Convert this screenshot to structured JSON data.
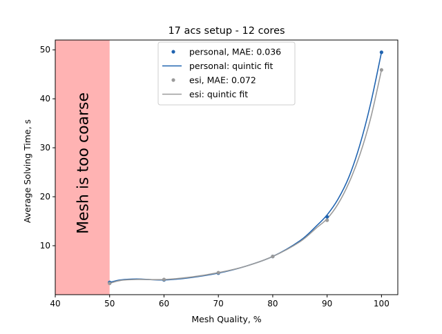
{
  "chart_data": {
    "type": "line",
    "title": "17 acs setup - 12 cores",
    "xlabel": "Mesh Quality, %",
    "ylabel": "Average Solving Time, s",
    "xlim": [
      40,
      103
    ],
    "ylim": [
      0,
      52
    ],
    "x_ticks": [
      40,
      50,
      60,
      70,
      80,
      90,
      100
    ],
    "y_ticks": [
      10,
      20,
      30,
      40,
      50
    ],
    "grid": false,
    "legend_position": "upper center",
    "colors": {
      "personal": "#1f63b0",
      "esi": "#9a9a9a",
      "shade": "#ffb3b3",
      "axis": "#000000"
    },
    "shaded_region": {
      "x": [
        40,
        50
      ],
      "label": "Mesh is too coarse",
      "color": "#ffb3b3"
    },
    "series": [
      {
        "name": "personal, MAE: 0.036",
        "kind": "points",
        "color": "#1f63b0",
        "x": [
          50,
          60,
          70,
          80,
          90,
          100
        ],
        "y": [
          2.5,
          3.0,
          4.4,
          7.8,
          15.9,
          49.5
        ]
      },
      {
        "name": "personal: quintic fit",
        "kind": "curve",
        "color": "#1f63b0",
        "x": [
          50,
          52,
          55,
          60,
          65,
          70,
          75,
          80,
          85,
          88,
          90,
          92,
          94,
          96,
          98,
          100
        ],
        "y": [
          2.5,
          3.0,
          3.2,
          3.0,
          3.5,
          4.4,
          5.8,
          7.8,
          11.0,
          14.0,
          16.3,
          19.5,
          24.0,
          30.5,
          39.0,
          49.5
        ]
      },
      {
        "name": "esi, MAE: 0.072",
        "kind": "points",
        "color": "#9a9a9a",
        "x": [
          50,
          60,
          70,
          80,
          90,
          100
        ],
        "y": [
          2.3,
          3.1,
          4.5,
          7.8,
          15.2,
          45.9
        ]
      },
      {
        "name": "esi: quintic fit",
        "kind": "curve",
        "color": "#9a9a9a",
        "x": [
          50,
          52,
          55,
          60,
          65,
          70,
          75,
          80,
          85,
          88,
          90,
          92,
          94,
          96,
          98,
          100
        ],
        "y": [
          2.3,
          2.9,
          3.1,
          3.1,
          3.6,
          4.5,
          5.8,
          7.8,
          10.8,
          13.6,
          15.5,
          18.5,
          22.8,
          28.5,
          36.0,
          45.9
        ]
      }
    ]
  }
}
